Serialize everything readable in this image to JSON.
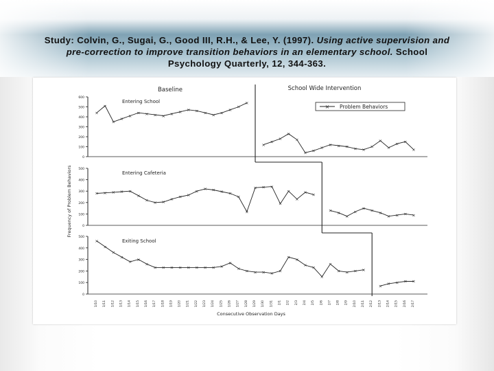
{
  "slide": {
    "citation_authors": "Study: Colvin, G., Sugai, G., Good III, R.H., & Lee, Y. (1997).",
    "citation_title": "Using active supervision and pre-correction to improve transition behaviors in an elementary school.",
    "citation_source": "School Psychology Quarterly, 12, 344-363."
  },
  "colors": {
    "line": "#222222",
    "background": "#ffffff"
  },
  "chart_data": {
    "type": "line",
    "phase_labels": [
      "Baseline",
      "School Wide Intervention"
    ],
    "legend": "Problem Behaviors",
    "ylabel": "Frequency of Problem Behaviors",
    "xlabel": "Consecutive Observation Days",
    "x": [
      "1/10",
      "1/11",
      "1/12",
      "1/13",
      "1/14",
      "1/15",
      "1/16",
      "1/17",
      "1/18",
      "1/19",
      "1/20",
      "1/21",
      "1/22",
      "1/23",
      "1/24",
      "1/25",
      "1/26",
      "1/27",
      "1/28",
      "1/29",
      "1/30",
      "1/31",
      "2/1",
      "2/2",
      "2/3",
      "2/4",
      "2/5",
      "2/6",
      "2/7",
      "2/8",
      "2/9",
      "2/10",
      "2/11",
      "2/12",
      "2/13",
      "2/14",
      "2/15",
      "2/16",
      "2/17"
    ],
    "panels": [
      {
        "title": "Entering School",
        "ylim": [
          0,
          600
        ],
        "yticks": [
          "0",
          "100",
          "200",
          "300",
          "400",
          "500",
          "600"
        ],
        "baseline_end": 19,
        "series": [
          {
            "x_index": [
              0,
              1,
              2,
              3,
              4,
              5,
              6,
              7,
              8,
              9,
              10,
              11,
              12,
              13,
              14,
              15,
              16,
              17,
              18
            ],
            "values": [
              440,
              510,
              350,
              380,
              410,
              440,
              430,
              420,
              410,
              430,
              450,
              470,
              460,
              440,
              420,
              440,
              470,
              500,
              540
            ]
          },
          {
            "x_index": [
              20,
              21,
              22,
              23,
              24,
              25,
              26,
              27,
              28,
              29,
              30,
              31,
              32,
              33,
              34,
              35,
              36,
              37,
              38
            ],
            "values": [
              120,
              150,
              180,
              230,
              170,
              40,
              60,
              90,
              120,
              110,
              100,
              80,
              70,
              100,
              160,
              90,
              130,
              150,
              70
            ]
          }
        ]
      },
      {
        "title": "Entering Cafeteria",
        "ylim": [
          0,
          500
        ],
        "yticks": [
          "0",
          "100",
          "200",
          "300",
          "400",
          "500"
        ],
        "baseline_end": 27,
        "series": [
          {
            "x_index": [
              0,
              1,
              2,
              3,
              4,
              5,
              6,
              7,
              8,
              9,
              10,
              11,
              12,
              13,
              14,
              15,
              16,
              17,
              18,
              19,
              20,
              21,
              22,
              23,
              24,
              25,
              26
            ],
            "values": [
              280,
              285,
              290,
              295,
              300,
              260,
              220,
              200,
              205,
              230,
              250,
              265,
              300,
              320,
              310,
              295,
              280,
              250,
              120,
              330,
              335,
              340,
              190,
              300,
              230,
              290,
              270
            ]
          },
          {
            "x_index": [
              28,
              29,
              30,
              31,
              32,
              33,
              34,
              35,
              36,
              37,
              38
            ],
            "values": [
              130,
              110,
              80,
              120,
              150,
              130,
              110,
              80,
              90,
              100,
              90
            ]
          }
        ]
      },
      {
        "title": "Exiting School",
        "ylim": [
          0,
          500
        ],
        "yticks": [
          "0",
          "100",
          "200",
          "300",
          "400",
          "500"
        ],
        "baseline_end": 33,
        "series": [
          {
            "x_index": [
              0,
              1,
              2,
              3,
              4,
              5,
              6,
              7,
              8,
              9,
              10,
              11,
              12,
              13,
              14,
              15,
              16,
              17,
              18,
              19,
              20,
              21,
              22,
              23,
              24,
              25,
              26,
              27,
              28,
              29,
              30,
              31,
              32
            ],
            "values": [
              460,
              410,
              360,
              320,
              280,
              300,
              260,
              230,
              230,
              230,
              230,
              230,
              230,
              230,
              230,
              240,
              270,
              220,
              200,
              190,
              190,
              180,
              200,
              320,
              300,
              250,
              230,
              150,
              260,
              200,
              190,
              200,
              210
            ]
          },
          {
            "x_index": [
              34,
              35,
              36,
              37,
              38
            ],
            "values": [
              70,
              90,
              100,
              110,
              110
            ]
          }
        ]
      }
    ]
  }
}
